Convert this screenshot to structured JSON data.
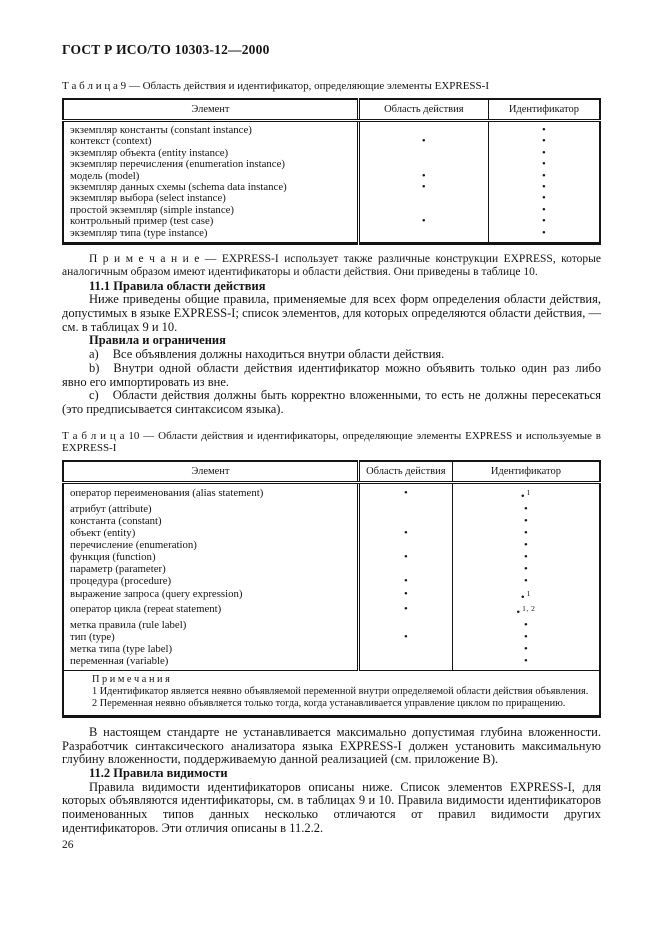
{
  "page": {
    "header_title": "ГОСТ Р ИСО/ТО 10303-12—2000",
    "page_number": "26"
  },
  "glyphs": {
    "bullet": "•"
  },
  "table9": {
    "caption": "Т а б л и ц а  9 — Область действия и идентификатор, определяющие элементы EXPRESS-I",
    "columns": {
      "element": "Элемент",
      "scope": "Область действия",
      "identifier": "Идентификатор"
    },
    "rows": [
      {
        "element": "экземпляр константы (constant instance)",
        "scope": false,
        "identifier": true
      },
      {
        "element": "контекст (context)",
        "scope": true,
        "identifier": true
      },
      {
        "element": "экземпляр объекта (entity instance)",
        "scope": false,
        "identifier": true
      },
      {
        "element": "экземпляр перечисления (enumeration instance)",
        "scope": false,
        "identifier": true
      },
      {
        "element": "модель (model)",
        "scope": true,
        "identifier": true
      },
      {
        "element": "экземпляр данных схемы (schema data instance)",
        "scope": true,
        "identifier": true
      },
      {
        "element": "экземпляр выбора (select instance)",
        "scope": false,
        "identifier": true
      },
      {
        "element": "простой экземпляр (simple instance)",
        "scope": false,
        "identifier": true
      },
      {
        "element": "контрольный пример (test case)",
        "scope": true,
        "identifier": true
      },
      {
        "element": "экземпляр типа (type instance)",
        "scope": false,
        "identifier": true
      }
    ]
  },
  "note_table9": {
    "label": "П р и м е ч а н и е —",
    "text": "EXPRESS-I использует также различные конструкции EXPRESS, которые аналогичным образом имеют идентификаторы и области действия. Они приведены в таблице 10."
  },
  "section_11_1": {
    "heading": "11.1 Правила области действия",
    "intro": "Ниже приведены общие правила, применяемые для всех форм определения области действия, допустимых в языке EXPRESS-I; список элементов, для которых определяются области действия, — см. в таблицах 9 и 10.",
    "rules_heading": "Правила и ограничения",
    "items": [
      {
        "label": "a)",
        "text": "Все объявления должны находиться внутри области действия."
      },
      {
        "label": "b)",
        "text": "Внутри одной области действия идентификатор можно объявить только один раз либо явно его импортировать из вне."
      },
      {
        "label": "c)",
        "text": "Области действия должны быть корректно вложенными, то есть не должны пересекаться (это предписывается синтаксисом языка)."
      }
    ]
  },
  "table10": {
    "caption": "Т а б л и ц а  10 — Области действия и идентификаторы, определяющие элементы EXPRESS и используемые в EXPRESS-I",
    "columns": {
      "element": "Элемент",
      "scope": "Область действия",
      "identifier": "Идентификатор"
    },
    "rows": [
      {
        "element": "оператор переименования (alias statement)",
        "scope": true,
        "identifier": true,
        "sup": "1"
      },
      {
        "element": "атрибут (attribute)",
        "scope": false,
        "identifier": true
      },
      {
        "element": "константа (constant)",
        "scope": false,
        "identifier": true
      },
      {
        "element": "объект (entity)",
        "scope": true,
        "identifier": true
      },
      {
        "element": "перечисление (enumeration)",
        "scope": false,
        "identifier": true
      },
      {
        "element": "функция (function)",
        "scope": true,
        "identifier": true
      },
      {
        "element": "параметр (parameter)",
        "scope": false,
        "identifier": true
      },
      {
        "element": "процедура (procedure)",
        "scope": true,
        "identifier": true
      },
      {
        "element": "выражение запроса (query expression)",
        "scope": true,
        "identifier": true,
        "sup": "1"
      },
      {
        "element": "оператор цикла (repeat statement)",
        "scope": true,
        "identifier": true,
        "sup": "1, 2"
      },
      {
        "element": "метка правила (rule label)",
        "scope": false,
        "identifier": true
      },
      {
        "element": "тип (type)",
        "scope": true,
        "identifier": true
      },
      {
        "element": "метка типа (type label)",
        "scope": false,
        "identifier": true
      },
      {
        "element": "переменная (variable)",
        "scope": false,
        "identifier": true
      }
    ],
    "notes": {
      "heading": "П р и м е ч а н и я",
      "items": [
        "1 Идентификатор является неявно объявляемой переменной внутри определяемой области действия объявления.",
        "2 Переменная неявно объявляется только тогда, когда устанавливается управление циклом по приращению."
      ]
    }
  },
  "closing": {
    "para_nesting": "В настоящем стандарте не устанавливается максимально допустимая глубина вложенности. Разработчик синтаксического анализатора языка EXPRESS-I должен установить максимальную глубину вложенности, поддерживаемую данной реализацией (см. приложение В).",
    "heading_11_2": "11.2 Правила видимости",
    "para_visibility": "Правила видимости идентификаторов описаны ниже. Список элементов EXPRESS-I, для которых объявляются идентификаторы, см. в таблицах 9 и 10. Правила видимости идентификаторов поименованных типов данных несколько отличаются от правил видимости других идентификаторов. Эти отличия описаны в 11.2.2."
  }
}
